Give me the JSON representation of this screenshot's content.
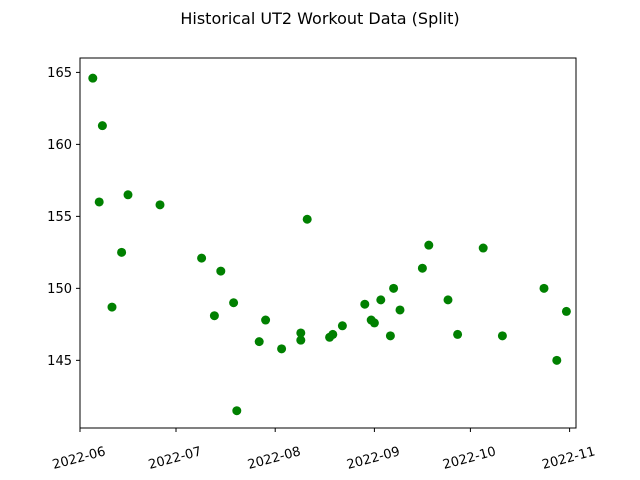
{
  "chart_data": {
    "type": "scatter",
    "title": "Historical UT2 Workout Data (Split)",
    "xlabel": "",
    "ylabel": "",
    "x_type": "date",
    "x_range": [
      "2022-06-01",
      "2022-11-03"
    ],
    "ylim": [
      140.3,
      166.0
    ],
    "x_ticks": [
      "2022-06",
      "2022-07",
      "2022-08",
      "2022-09",
      "2022-10",
      "2022-11"
    ],
    "x_tick_dates": [
      "2022-06-01",
      "2022-07-01",
      "2022-08-01",
      "2022-09-01",
      "2022-10-01",
      "2022-11-01"
    ],
    "y_ticks": [
      145,
      150,
      155,
      160,
      165
    ],
    "grid": false,
    "marker_color": "#008000",
    "series": [
      {
        "points": [
          {
            "x": "2022-06-05",
            "y": 164.6
          },
          {
            "x": "2022-06-07",
            "y": 156.0
          },
          {
            "x": "2022-06-08",
            "y": 161.3
          },
          {
            "x": "2022-06-11",
            "y": 148.7
          },
          {
            "x": "2022-06-14",
            "y": 152.5
          },
          {
            "x": "2022-06-16",
            "y": 156.5
          },
          {
            "x": "2022-06-26",
            "y": 155.8
          },
          {
            "x": "2022-07-09",
            "y": 152.1
          },
          {
            "x": "2022-07-13",
            "y": 148.1
          },
          {
            "x": "2022-07-15",
            "y": 151.2
          },
          {
            "x": "2022-07-19",
            "y": 149.0
          },
          {
            "x": "2022-07-20",
            "y": 141.5
          },
          {
            "x": "2022-07-27",
            "y": 146.3
          },
          {
            "x": "2022-07-29",
            "y": 147.8
          },
          {
            "x": "2022-08-03",
            "y": 145.8
          },
          {
            "x": "2022-08-09",
            "y": 146.9
          },
          {
            "x": "2022-08-09",
            "y": 146.4
          },
          {
            "x": "2022-08-11",
            "y": 154.8
          },
          {
            "x": "2022-08-18",
            "y": 146.6
          },
          {
            "x": "2022-08-19",
            "y": 146.8
          },
          {
            "x": "2022-08-22",
            "y": 147.4
          },
          {
            "x": "2022-08-29",
            "y": 148.9
          },
          {
            "x": "2022-08-31",
            "y": 147.8
          },
          {
            "x": "2022-09-01",
            "y": 147.6
          },
          {
            "x": "2022-09-03",
            "y": 149.2
          },
          {
            "x": "2022-09-06",
            "y": 146.7
          },
          {
            "x": "2022-09-07",
            "y": 150.0
          },
          {
            "x": "2022-09-09",
            "y": 148.5
          },
          {
            "x": "2022-09-16",
            "y": 151.4
          },
          {
            "x": "2022-09-18",
            "y": 153.0
          },
          {
            "x": "2022-09-24",
            "y": 149.2
          },
          {
            "x": "2022-09-27",
            "y": 146.8
          },
          {
            "x": "2022-10-05",
            "y": 152.8
          },
          {
            "x": "2022-10-11",
            "y": 146.7
          },
          {
            "x": "2022-10-24",
            "y": 150.0
          },
          {
            "x": "2022-10-28",
            "y": 145.0
          },
          {
            "x": "2022-10-31",
            "y": 148.4
          }
        ]
      }
    ]
  }
}
